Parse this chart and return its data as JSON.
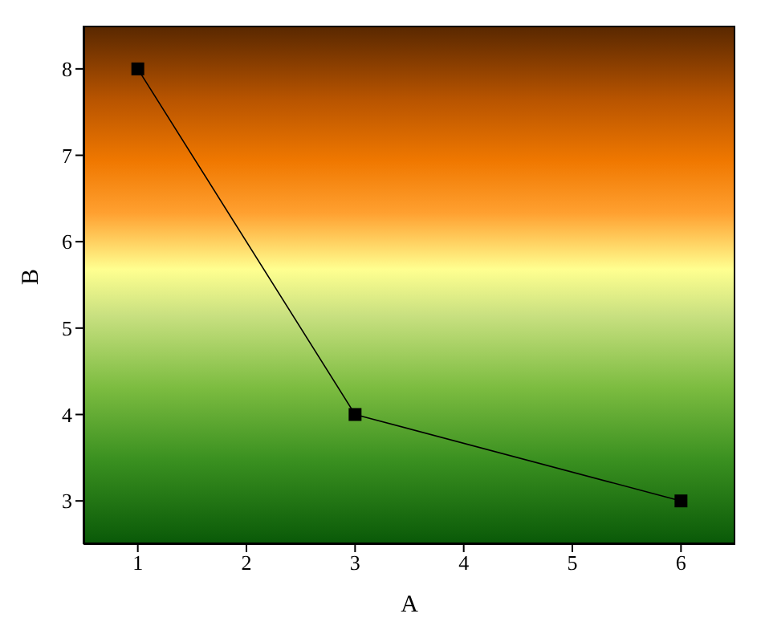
{
  "chart_data": {
    "type": "line",
    "xlabel": "A",
    "ylabel": "B",
    "x": [
      1,
      3,
      6
    ],
    "series": [
      {
        "color": "#000000",
        "values": [
          8,
          4,
          3
        ]
      }
    ],
    "xlim": [
      0.5,
      6.5
    ],
    "xticks": [
      1,
      2,
      3,
      4,
      5,
      6
    ],
    "ylim": [
      2.5,
      8.5
    ],
    "yticks": [
      3,
      4,
      5,
      6,
      7,
      8
    ],
    "marker": "square",
    "line_style": "solid"
  }
}
